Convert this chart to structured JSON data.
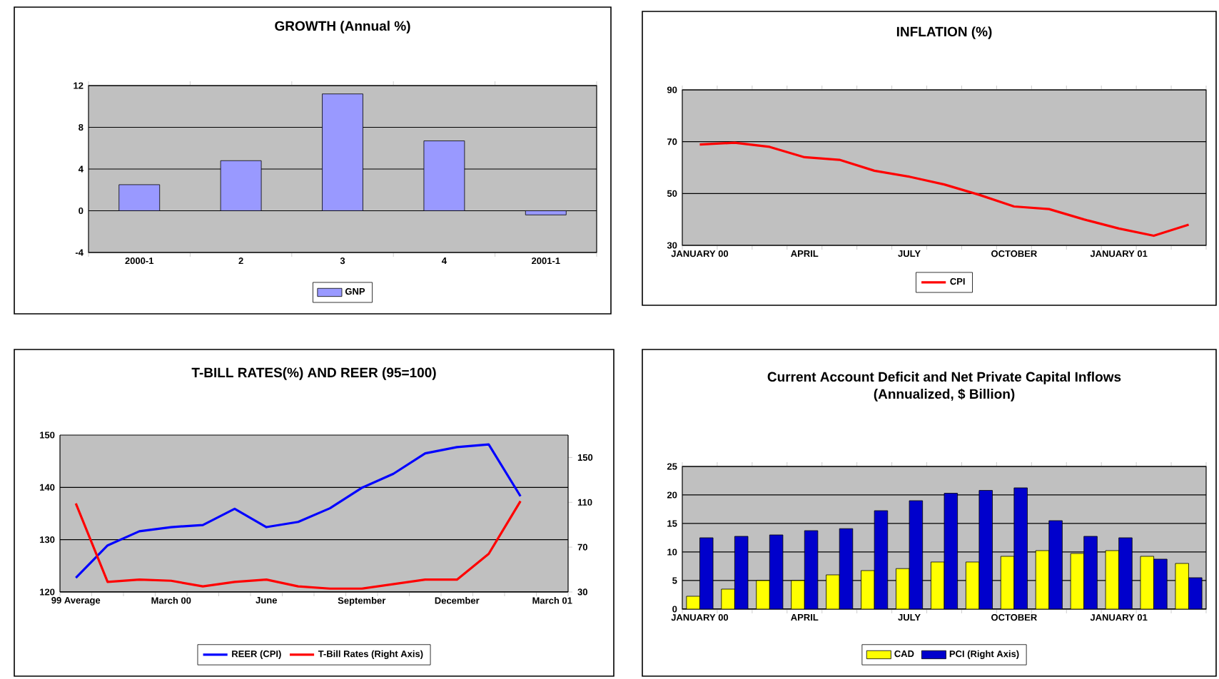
{
  "chart_data": [
    {
      "type": "bar",
      "title": "GROWTH (Annual %)",
      "categories": [
        "2000-1",
        "2",
        "3",
        "4",
        "2001-1"
      ],
      "series": [
        {
          "name": "GNP",
          "color": "#9999ff",
          "values": [
            2.5,
            4.8,
            11.2,
            6.7,
            -0.4
          ]
        }
      ],
      "ylim": [
        -4,
        12
      ],
      "yticks": [
        -4,
        0,
        4,
        8,
        12
      ],
      "grid": "y",
      "legend": "bottom"
    },
    {
      "type": "line",
      "title": "INFLATION (%)",
      "categories": [
        "JANUARY 00",
        null,
        null,
        "APRIL",
        null,
        null,
        "JULY",
        null,
        null,
        "OCTOBER",
        null,
        null,
        "JANUARY 01",
        null,
        null
      ],
      "series": [
        {
          "name": "CPI",
          "color": "#ff0000",
          "values": [
            68.9,
            69.6,
            68,
            64,
            63,
            58.8,
            56.5,
            53.5,
            49.5,
            45,
            44,
            40,
            36.5,
            33.7,
            38
          ]
        }
      ],
      "ylim": [
        30,
        90
      ],
      "yticks": [
        30,
        50,
        70,
        90
      ],
      "grid": "y",
      "legend": "bottom"
    },
    {
      "type": "line",
      "title": "T-BILL RATES(%) AND REER (95=100)",
      "categories": [
        "99 Average",
        null,
        null,
        "March 00",
        null,
        null,
        "June",
        null,
        null,
        "September",
        null,
        null,
        "December",
        null,
        null,
        "March 01"
      ],
      "series": [
        {
          "name": "REER (CPI)",
          "color": "#0000ff",
          "values": [
            122.7,
            128.9,
            131.6,
            132.4,
            132.8,
            135.9,
            132.4,
            133.4,
            136,
            139.9,
            142.6,
            146.5,
            147.7,
            148.2,
            138.3,
            null
          ]
        },
        {
          "name": "T-Bill Rates (Right Axis)",
          "color": "#ff0000",
          "axis": "y2",
          "values": [
            109,
            39,
            41,
            40,
            35,
            39,
            41,
            35,
            33,
            33,
            37,
            41,
            41,
            64,
            111,
            null
          ]
        }
      ],
      "ylim": [
        120,
        150
      ],
      "yticks": [
        120,
        130,
        140,
        150
      ],
      "y2lim": [
        30,
        170
      ],
      "y2ticks": [
        30,
        70,
        110,
        150
      ],
      "grid": "y",
      "legend": "bottom"
    },
    {
      "type": "bar",
      "title": "Current Account Deficit and Net Private Capital Inflows",
      "subtitle": "(Annualized, $ Billion)",
      "categories": [
        "JANUARY 00",
        null,
        null,
        "APRIL",
        null,
        null,
        "JULY",
        null,
        null,
        "OCTOBER",
        null,
        null,
        "JANUARY 01",
        null,
        null
      ],
      "series": [
        {
          "name": "CAD",
          "color": "#ffff00",
          "values": [
            2.25,
            3.5,
            5,
            5,
            6,
            6.75,
            7.1,
            8.25,
            8.25,
            9.25,
            10.25,
            9.75,
            10.25,
            9.25,
            8
          ]
        },
        {
          "name": "PCI (Right Axis)",
          "color": "#0000cc",
          "values": [
            12.5,
            12.75,
            13,
            13.75,
            14.1,
            17.25,
            19,
            20.3,
            20.8,
            21.25,
            15.5,
            12.75,
            12.5,
            8.75,
            5.5
          ]
        }
      ],
      "ylim": [
        0,
        25
      ],
      "yticks": [
        0,
        5,
        10,
        15,
        20,
        25
      ],
      "grid": "y",
      "legend": "bottom"
    }
  ]
}
